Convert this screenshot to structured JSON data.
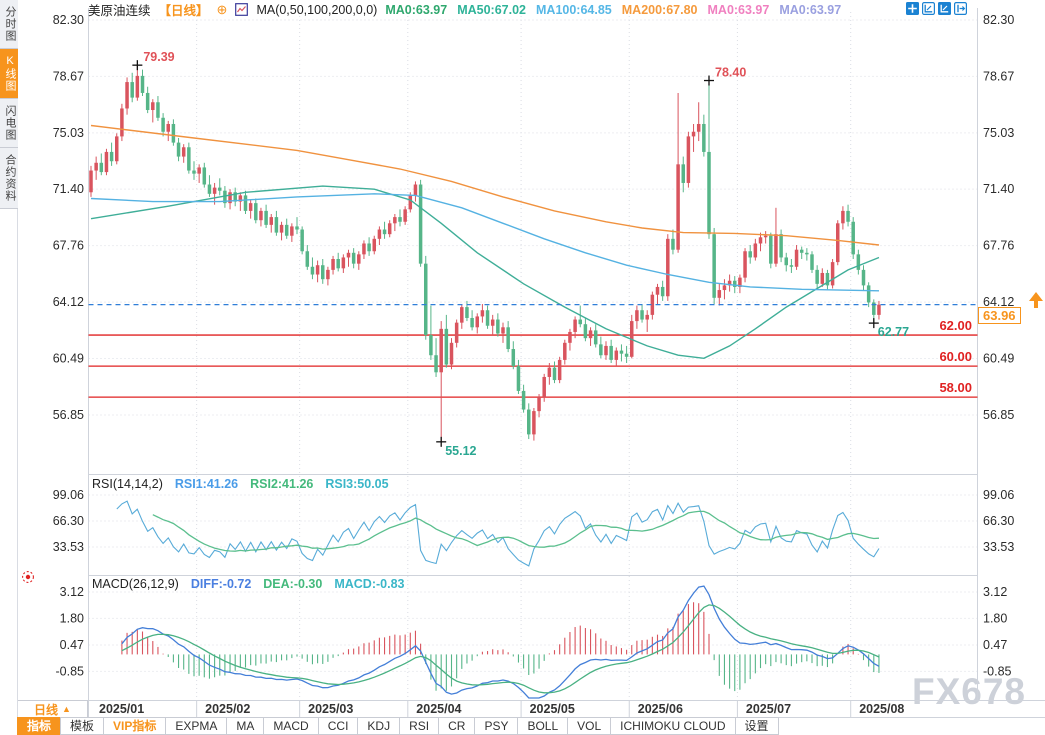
{
  "sidebar": {
    "tabs": [
      {
        "name": "time-share-chart",
        "label": "分时图",
        "active": false
      },
      {
        "name": "kline-chart",
        "label": "K线图",
        "active": true
      },
      {
        "name": "lightning-chart",
        "label": "闪电图",
        "active": false
      },
      {
        "name": "contract-info",
        "label": "合约资料",
        "active": false
      }
    ]
  },
  "header": {
    "symbol": "美原油连续",
    "period": "【日线】",
    "ma_settings": "MA(0,50,100,200,0,0)",
    "ma_values": [
      {
        "label": "MA0:63.97",
        "color": "#2fa86e"
      },
      {
        "label": "MA50:67.02",
        "color": "#2eb398"
      },
      {
        "label": "MA100:64.85",
        "color": "#55b7e6"
      },
      {
        "label": "MA200:67.80",
        "color": "#f59a3c"
      },
      {
        "label": "MA0:63.97",
        "color": "#f080c0"
      },
      {
        "label": "MA0:63.97",
        "color": "#9aa0e0"
      }
    ],
    "window_icons": [
      "crosshair-icon",
      "zoom-axes-icon",
      "scale-axes-icon",
      "pan-right-icon"
    ]
  },
  "chart_data": {
    "type": "candlestick",
    "title": "美原油连续 日线",
    "x_labels": [
      "2025/01",
      "2025/02",
      "2025/03",
      "2025/04",
      "2025/05",
      "2025/06",
      "2025/07",
      "2025/08"
    ],
    "month_start_indices": [
      0,
      21,
      41,
      62,
      84,
      105,
      126,
      148
    ],
    "y_axis_values": [
      82.3,
      78.67,
      75.03,
      71.4,
      67.76,
      64.12,
      60.49,
      56.85
    ],
    "up_color": "#d9545e",
    "down_color": "#56b588",
    "support_lines": {
      "values": [
        62.0,
        60.0,
        58.0
      ],
      "labels": [
        "62.00",
        "60.00",
        "58.00"
      ],
      "color": "#e02222"
    },
    "last_price": {
      "value": 63.96,
      "label": "63.96",
      "line_color": "#2f7ed8",
      "tag_color": "#f7941d"
    },
    "annotations": [
      {
        "text": "79.39",
        "index": 9,
        "at": "high",
        "color": "#e05258"
      },
      {
        "text": "78.40",
        "index": 120,
        "at": "high",
        "color": "#e05258"
      },
      {
        "text": "55.12",
        "index": 68,
        "at": "low",
        "color": "#2aa792"
      },
      {
        "text": "62.77",
        "index": 152,
        "at": "low",
        "color": "#2aa792"
      }
    ],
    "ma_lines": [
      {
        "name": "MA50",
        "color": "#3fae98",
        "points": [
          [
            0,
            69.5
          ],
          [
            15,
            70.3
          ],
          [
            30,
            71.2
          ],
          [
            45,
            71.6
          ],
          [
            55,
            71.4
          ],
          [
            62,
            70.7
          ],
          [
            68,
            69.2
          ],
          [
            75,
            67.3
          ],
          [
            84,
            65.3
          ],
          [
            92,
            63.8
          ],
          [
            100,
            62.4
          ],
          [
            108,
            61.3
          ],
          [
            114,
            60.7
          ],
          [
            119,
            60.5
          ],
          [
            124,
            61.3
          ],
          [
            129,
            62.4
          ],
          [
            135,
            63.8
          ],
          [
            141,
            65.0
          ],
          [
            147,
            66.2
          ],
          [
            153,
            67.0
          ]
        ]
      },
      {
        "name": "MA100",
        "color": "#55b2e2",
        "points": [
          [
            0,
            70.8
          ],
          [
            12,
            70.6
          ],
          [
            25,
            70.6
          ],
          [
            40,
            70.9
          ],
          [
            55,
            71.1
          ],
          [
            63,
            71.0
          ],
          [
            72,
            70.2
          ],
          [
            80,
            69.2
          ],
          [
            88,
            68.2
          ],
          [
            96,
            67.3
          ],
          [
            104,
            66.5
          ],
          [
            112,
            65.9
          ],
          [
            120,
            65.4
          ],
          [
            128,
            65.1
          ],
          [
            138,
            64.95
          ],
          [
            153,
            64.85
          ]
        ]
      },
      {
        "name": "MA200",
        "color": "#f0923f",
        "points": [
          [
            0,
            75.5
          ],
          [
            20,
            74.7
          ],
          [
            40,
            73.9
          ],
          [
            50,
            73.3
          ],
          [
            60,
            72.7
          ],
          [
            70,
            71.9
          ],
          [
            80,
            70.9
          ],
          [
            90,
            70.0
          ],
          [
            100,
            69.3
          ],
          [
            107,
            68.9
          ],
          [
            115,
            68.6
          ],
          [
            125,
            68.55
          ],
          [
            135,
            68.4
          ],
          [
            145,
            68.1
          ],
          [
            153,
            67.8
          ]
        ]
      }
    ],
    "candles": [
      [
        71.2,
        72.9,
        70.9,
        72.6
      ],
      [
        72.6,
        73.5,
        72.0,
        73.1
      ],
      [
        73.1,
        73.7,
        72.3,
        72.5
      ],
      [
        72.5,
        74.0,
        72.3,
        73.8
      ],
      [
        73.8,
        74.4,
        72.9,
        73.2
      ],
      [
        73.2,
        75.0,
        73.0,
        74.8
      ],
      [
        74.8,
        76.9,
        74.5,
        76.6
      ],
      [
        76.6,
        78.6,
        76.2,
        78.3
      ],
      [
        78.3,
        78.9,
        77.0,
        77.3
      ],
      [
        77.3,
        79.39,
        77.1,
        78.7
      ],
      [
        78.7,
        79.1,
        77.4,
        77.6
      ],
      [
        77.6,
        78.0,
        76.3,
        76.5
      ],
      [
        76.5,
        77.2,
        75.7,
        77.0
      ],
      [
        77.0,
        77.4,
        75.8,
        76.0
      ],
      [
        76.0,
        76.3,
        74.8,
        75.1
      ],
      [
        75.1,
        75.8,
        74.5,
        75.6
      ],
      [
        75.6,
        75.9,
        74.2,
        74.4
      ],
      [
        74.4,
        74.7,
        73.2,
        73.5
      ],
      [
        73.5,
        74.3,
        73.1,
        74.1
      ],
      [
        74.1,
        74.4,
        72.4,
        72.6
      ],
      [
        72.6,
        73.2,
        72.0,
        72.4
      ],
      [
        72.4,
        73.0,
        71.8,
        72.8
      ],
      [
        72.8,
        73.1,
        71.5,
        71.7
      ],
      [
        71.7,
        72.3,
        70.9,
        71.1
      ],
      [
        71.1,
        71.8,
        70.4,
        71.5
      ],
      [
        71.5,
        72.1,
        71.0,
        71.3
      ],
      [
        71.3,
        71.6,
        70.2,
        70.5
      ],
      [
        70.5,
        71.4,
        70.1,
        71.2
      ],
      [
        71.2,
        71.5,
        70.3,
        70.6
      ],
      [
        70.6,
        71.2,
        70.0,
        71.0
      ],
      [
        71.0,
        71.3,
        69.8,
        70.0
      ],
      [
        70.0,
        70.7,
        69.5,
        70.5
      ],
      [
        70.5,
        70.8,
        69.2,
        69.4
      ],
      [
        69.4,
        70.2,
        69.0,
        70.0
      ],
      [
        70.0,
        70.4,
        68.9,
        69.1
      ],
      [
        69.1,
        69.8,
        68.6,
        69.6
      ],
      [
        69.6,
        70.0,
        68.4,
        68.6
      ],
      [
        68.6,
        69.3,
        68.1,
        69.1
      ],
      [
        69.1,
        69.5,
        68.2,
        68.4
      ],
      [
        68.4,
        69.2,
        68.0,
        69.0
      ],
      [
        69.0,
        69.6,
        68.5,
        68.8
      ],
      [
        68.8,
        69.0,
        67.2,
        67.4
      ],
      [
        67.4,
        67.8,
        66.2,
        66.4
      ],
      [
        66.4,
        67.0,
        65.6,
        65.9
      ],
      [
        65.9,
        66.8,
        65.4,
        66.5
      ],
      [
        66.5,
        66.9,
        65.3,
        65.6
      ],
      [
        65.6,
        66.4,
        65.2,
        66.2
      ],
      [
        66.2,
        67.1,
        65.9,
        66.9
      ],
      [
        66.9,
        67.3,
        66.1,
        66.3
      ],
      [
        66.3,
        67.2,
        66.0,
        67.0
      ],
      [
        67.0,
        67.5,
        66.4,
        67.3
      ],
      [
        67.3,
        67.6,
        66.3,
        66.6
      ],
      [
        66.6,
        67.4,
        66.2,
        67.2
      ],
      [
        67.2,
        68.1,
        66.9,
        67.9
      ],
      [
        67.9,
        68.3,
        67.1,
        67.4
      ],
      [
        67.4,
        68.4,
        67.2,
        68.2
      ],
      [
        68.2,
        69.0,
        67.8,
        68.8
      ],
      [
        68.8,
        69.3,
        68.2,
        68.5
      ],
      [
        68.5,
        69.4,
        68.3,
        69.2
      ],
      [
        69.2,
        69.8,
        68.7,
        69.6
      ],
      [
        69.6,
        70.1,
        69.0,
        69.3
      ],
      [
        69.3,
        70.3,
        69.1,
        70.1
      ],
      [
        70.1,
        71.2,
        69.9,
        71.0
      ],
      [
        71.0,
        71.9,
        70.6,
        71.7
      ],
      [
        71.7,
        72.0,
        66.4,
        66.6
      ],
      [
        66.6,
        67.1,
        61.7,
        62.0
      ],
      [
        62.0,
        63.9,
        60.4,
        60.7
      ],
      [
        60.7,
        61.8,
        59.3,
        59.6
      ],
      [
        59.6,
        62.9,
        55.12,
        62.4
      ],
      [
        62.4,
        63.3,
        59.9,
        60.1
      ],
      [
        60.1,
        61.8,
        59.8,
        61.5
      ],
      [
        61.5,
        63.0,
        61.2,
        62.8
      ],
      [
        62.8,
        64.0,
        62.4,
        63.8
      ],
      [
        63.8,
        64.2,
        62.9,
        63.1
      ],
      [
        63.1,
        63.6,
        62.3,
        62.5
      ],
      [
        62.5,
        63.4,
        62.1,
        63.2
      ],
      [
        63.2,
        64.0,
        62.8,
        63.6
      ],
      [
        63.6,
        63.9,
        62.4,
        62.6
      ],
      [
        62.6,
        63.3,
        62.0,
        63.0
      ],
      [
        63.0,
        63.4,
        61.9,
        62.1
      ],
      [
        62.1,
        62.8,
        61.5,
        62.5
      ],
      [
        62.5,
        62.9,
        60.9,
        61.1
      ],
      [
        61.1,
        61.6,
        59.8,
        60.0
      ],
      [
        60.0,
        60.4,
        58.2,
        58.4
      ],
      [
        58.4,
        58.8,
        57.0,
        57.2
      ],
      [
        57.2,
        57.6,
        55.3,
        55.6
      ],
      [
        55.6,
        57.3,
        55.2,
        57.1
      ],
      [
        57.1,
        58.2,
        56.7,
        58.0
      ],
      [
        58.0,
        59.5,
        57.7,
        59.3
      ],
      [
        59.3,
        60.2,
        58.8,
        59.9
      ],
      [
        59.9,
        60.3,
        58.9,
        59.1
      ],
      [
        59.1,
        60.6,
        58.9,
        60.4
      ],
      [
        60.4,
        61.7,
        60.1,
        61.5
      ],
      [
        61.5,
        62.4,
        61.0,
        62.2
      ],
      [
        62.2,
        63.2,
        61.8,
        63.0
      ],
      [
        63.0,
        63.9,
        62.5,
        62.7
      ],
      [
        62.7,
        63.1,
        61.6,
        61.8
      ],
      [
        61.8,
        62.5,
        61.3,
        62.3
      ],
      [
        62.3,
        62.7,
        61.2,
        61.4
      ],
      [
        61.4,
        61.9,
        60.5,
        60.7
      ],
      [
        60.7,
        61.6,
        60.4,
        61.3
      ],
      [
        61.3,
        61.7,
        60.2,
        60.4
      ],
      [
        60.4,
        61.2,
        60.0,
        61.0
      ],
      [
        61.0,
        61.4,
        60.3,
        60.8
      ],
      [
        60.8,
        61.3,
        60.2,
        60.6
      ],
      [
        60.6,
        63.3,
        60.5,
        62.9
      ],
      [
        62.9,
        63.9,
        62.4,
        63.6
      ],
      [
        63.6,
        64.0,
        62.8,
        63.0
      ],
      [
        63.0,
        63.6,
        62.2,
        63.3
      ],
      [
        63.3,
        64.8,
        63.0,
        64.6
      ],
      [
        64.6,
        65.3,
        64.0,
        65.1
      ],
      [
        65.1,
        65.5,
        64.2,
        64.5
      ],
      [
        64.5,
        68.5,
        64.2,
        68.2
      ],
      [
        68.2,
        68.8,
        67.2,
        67.5
      ],
      [
        67.5,
        77.6,
        67.3,
        73.0
      ],
      [
        73.0,
        73.5,
        71.2,
        71.8
      ],
      [
        71.8,
        75.1,
        71.5,
        74.8
      ],
      [
        74.8,
        75.6,
        73.8,
        75.1
      ],
      [
        75.1,
        77.0,
        74.5,
        75.6
      ],
      [
        75.6,
        76.2,
        73.5,
        73.8
      ],
      [
        73.8,
        78.4,
        68.2,
        68.5
      ],
      [
        68.5,
        68.9,
        64.0,
        64.4
      ],
      [
        64.4,
        65.3,
        63.9,
        64.9
      ],
      [
        64.9,
        65.6,
        64.3,
        65.2
      ],
      [
        65.2,
        65.9,
        64.8,
        65.5
      ],
      [
        65.5,
        65.8,
        64.7,
        65.1
      ],
      [
        65.1,
        65.9,
        64.7,
        65.7
      ],
      [
        65.7,
        67.6,
        65.4,
        67.4
      ],
      [
        67.4,
        67.8,
        66.6,
        67.0
      ],
      [
        67.0,
        68.2,
        66.8,
        67.9
      ],
      [
        67.9,
        68.6,
        67.4,
        68.3
      ],
      [
        68.3,
        68.7,
        67.9,
        68.4
      ],
      [
        68.4,
        68.6,
        66.3,
        66.6
      ],
      [
        66.6,
        70.2,
        66.4,
        68.5
      ],
      [
        68.5,
        68.8,
        66.7,
        67.0
      ],
      [
        67.0,
        67.3,
        66.1,
        66.5
      ],
      [
        66.5,
        66.9,
        66.0,
        66.4
      ],
      [
        66.4,
        67.8,
        66.2,
        67.5
      ],
      [
        67.5,
        67.7,
        66.9,
        67.3
      ],
      [
        67.3,
        67.6,
        66.8,
        67.2
      ],
      [
        67.2,
        67.4,
        66.0,
        66.2
      ],
      [
        66.2,
        66.5,
        65.0,
        65.3
      ],
      [
        65.3,
        66.3,
        65.1,
        66.0
      ],
      [
        66.0,
        66.2,
        64.9,
        65.2
      ],
      [
        65.2,
        66.9,
        65.0,
        66.7
      ],
      [
        66.7,
        69.4,
        66.5,
        69.2
      ],
      [
        69.2,
        70.3,
        68.8,
        70.0
      ],
      [
        70.0,
        70.4,
        69.0,
        69.3
      ],
      [
        69.3,
        69.6,
        66.9,
        67.2
      ],
      [
        67.2,
        67.5,
        65.9,
        66.2
      ],
      [
        66.2,
        66.5,
        64.9,
        65.2
      ],
      [
        65.2,
        65.4,
        63.8,
        64.1
      ],
      [
        64.1,
        64.3,
        62.77,
        63.3
      ],
      [
        63.3,
        64.2,
        63.0,
        63.96
      ]
    ]
  },
  "rsi_panel": {
    "title": "RSI(14,14,2)",
    "readouts": [
      {
        "label": "RSI1:41.26",
        "color": "#4a9ce8"
      },
      {
        "label": "RSI2:41.26",
        "color": "#44b97c"
      },
      {
        "label": "RSI3:50.05",
        "color": "#3ab6c8"
      }
    ],
    "axis_values": [
      99.06,
      66.3,
      33.53
    ],
    "line_colors": {
      "fast": "#58abd8",
      "slow": "#5bbf8e"
    }
  },
  "macd_panel": {
    "title": "MACD(26,12,9)",
    "readouts": [
      {
        "label": "DIFF:-0.72",
        "color": "#4a7fe0"
      },
      {
        "label": "DEA:-0.30",
        "color": "#44b97c"
      },
      {
        "label": "MACD:-0.83",
        "color": "#3ab6c8"
      }
    ],
    "axis_values": [
      3.12,
      1.8,
      0.47,
      -0.85
    ],
    "last": {
      "diff": -0.72,
      "dea": -0.3,
      "macd": -0.83
    },
    "line_colors": {
      "diff": "#447fd8",
      "dea": "#49b183"
    }
  },
  "bottom": {
    "period_label": "日线",
    "tabs": [
      {
        "name": "indicators",
        "label": "指标",
        "style": "active"
      },
      {
        "name": "templates",
        "label": "模板",
        "style": ""
      },
      {
        "name": "vip-indicators",
        "label": "VIP指标",
        "style": "vip"
      },
      {
        "name": "expma",
        "label": "EXPMA",
        "style": ""
      },
      {
        "name": "ma",
        "label": "MA",
        "style": ""
      },
      {
        "name": "macd",
        "label": "MACD",
        "style": ""
      },
      {
        "name": "cci",
        "label": "CCI",
        "style": ""
      },
      {
        "name": "kdj",
        "label": "KDJ",
        "style": ""
      },
      {
        "name": "rsi",
        "label": "RSI",
        "style": ""
      },
      {
        "name": "cr",
        "label": "CR",
        "style": ""
      },
      {
        "name": "psy",
        "label": "PSY",
        "style": ""
      },
      {
        "name": "boll",
        "label": "BOLL",
        "style": ""
      },
      {
        "name": "vol",
        "label": "VOL",
        "style": ""
      },
      {
        "name": "ichimoku-cloud",
        "label": "ICHIMOKU CLOUD",
        "style": ""
      },
      {
        "name": "settings",
        "label": "设置",
        "style": ""
      }
    ]
  },
  "watermark": "FX678"
}
